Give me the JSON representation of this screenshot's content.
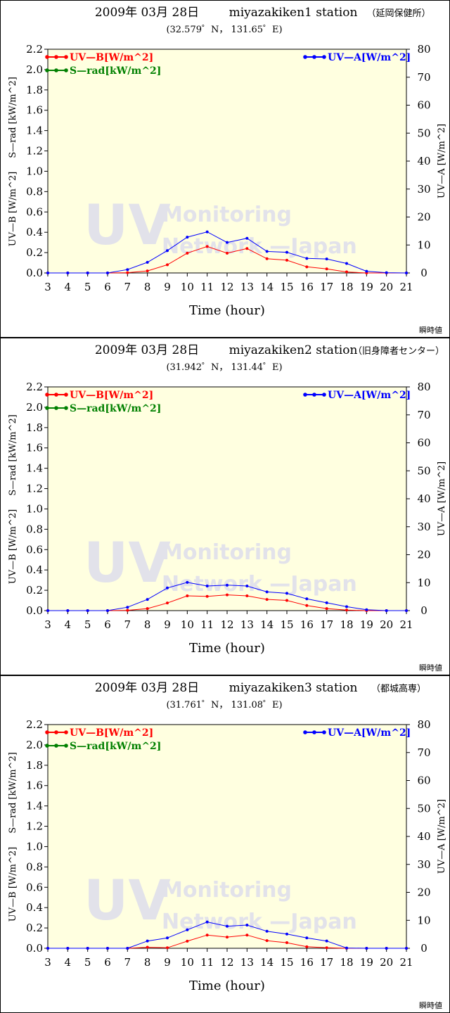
{
  "footer_label": "瞬時値",
  "watermark": {
    "big": "UV",
    "line1": "Monitoring",
    "line2": "Network —Japan"
  },
  "colors": {
    "uvb": "#ff0000",
    "srad": "#008000",
    "uva": "#0000ff",
    "plot_bg": "#ffffe0",
    "watermark": "#e2e2ea"
  },
  "chart_data": [
    {
      "type": "line",
      "date": "2009年 03月 28日",
      "station": "miyazakiken1 station",
      "station_note": "（延岡保健所）",
      "coordinates": "(32.579゜N， 131.65゜E)",
      "xlabel": "Time (hour)",
      "y_left_label_uvb": "UV—B [W/m^2]",
      "y_left_label_srad": "S—rad [kW/m^2]",
      "y_right_label": "UV—A [W/m^2]",
      "x": [
        3,
        4,
        5,
        6,
        7,
        8,
        9,
        10,
        11,
        12,
        13,
        14,
        15,
        16,
        17,
        18,
        19,
        20,
        21
      ],
      "xlim": [
        3,
        21
      ],
      "ylim_left": [
        0,
        2.2
      ],
      "ylim_right": [
        0,
        80
      ],
      "y_left_ticks": [
        "0.0",
        "0.2",
        "0.4",
        "0.6",
        "0.8",
        "1.0",
        "1.2",
        "1.4",
        "1.6",
        "1.8",
        "2.0",
        "2.2"
      ],
      "y_right_ticks": [
        "0",
        "10",
        "20",
        "30",
        "40",
        "50",
        "60",
        "70",
        "80"
      ],
      "legend": {
        "uvb": "UV—B[W/m^2]",
        "srad": "S—rad[kW/m^2]",
        "uva": "UV—A[W/m^2]"
      },
      "series": [
        {
          "name": "UV—B[W/m^2]",
          "axis": "left",
          "values": [
            0,
            0,
            0,
            0,
            0.003,
            0.02,
            0.08,
            0.195,
            0.26,
            0.195,
            0.24,
            0.14,
            0.125,
            0.06,
            0.04,
            0.01,
            0,
            0,
            0
          ]
        },
        {
          "name": "UV—A[W/m^2]",
          "axis": "right",
          "values": [
            0,
            0,
            0,
            0,
            1.2,
            3.8,
            8,
            12.8,
            14.7,
            10.9,
            12.4,
            7.7,
            7.4,
            5.2,
            5,
            3.4,
            0.6,
            0.1,
            0
          ]
        }
      ]
    },
    {
      "type": "line",
      "date": "2009年 03月 28日",
      "station": "miyazakiken2 station",
      "station_note": "（旧身障者センター）",
      "coordinates": "(31.942゜N， 131.44゜E)",
      "xlabel": "Time (hour)",
      "y_left_label_uvb": "UV—B [W/m^2]",
      "y_left_label_srad": "S—rad [kW/m^2]",
      "y_right_label": "UV—A [W/m^2]",
      "x": [
        3,
        4,
        5,
        6,
        7,
        8,
        9,
        10,
        11,
        12,
        13,
        14,
        15,
        16,
        17,
        18,
        19,
        20,
        21
      ],
      "xlim": [
        3,
        21
      ],
      "ylim_left": [
        0,
        2.2
      ],
      "ylim_right": [
        0,
        80
      ],
      "y_left_ticks": [
        "0.0",
        "0.2",
        "0.4",
        "0.6",
        "0.8",
        "1.0",
        "1.2",
        "1.4",
        "1.6",
        "1.8",
        "2.0",
        "2.2"
      ],
      "y_right_ticks": [
        "0",
        "10",
        "20",
        "30",
        "40",
        "50",
        "60",
        "70",
        "80"
      ],
      "legend": {
        "uvb": "UV—B[W/m^2]",
        "srad": "S—rad[kW/m^2]",
        "uva": "UV—A[W/m^2]"
      },
      "series": [
        {
          "name": "UV—B[W/m^2]",
          "axis": "left",
          "values": [
            0,
            0,
            0,
            0,
            0.003,
            0.02,
            0.075,
            0.145,
            0.14,
            0.155,
            0.145,
            0.11,
            0.1,
            0.05,
            0.02,
            0.005,
            0,
            0,
            0
          ]
        },
        {
          "name": "UV—A[W/m^2]",
          "axis": "right",
          "values": [
            0,
            0,
            0,
            0,
            1.2,
            4,
            8.1,
            10.1,
            8.8,
            9.1,
            8.8,
            6.7,
            6.2,
            4.2,
            2.8,
            1.4,
            0.3,
            0,
            0
          ]
        }
      ]
    },
    {
      "type": "line",
      "date": "2009年 03月 28日",
      "station": "miyazakiken3 station",
      "station_note": "（都城高専）",
      "coordinates": "(31.761゜N， 131.08゜E)",
      "xlabel": "Time (hour)",
      "y_left_label_uvb": "UV—B [W/m^2]",
      "y_left_label_srad": "S—rad [kW/m^2]",
      "y_right_label": "UV—A [W/m^2]",
      "x": [
        3,
        4,
        5,
        6,
        7,
        8,
        9,
        10,
        11,
        12,
        13,
        14,
        15,
        16,
        17,
        18,
        19,
        20,
        21
      ],
      "xlim": [
        3,
        21
      ],
      "ylim_left": [
        0,
        2.2
      ],
      "ylim_right": [
        0,
        80
      ],
      "y_left_ticks": [
        "0.0",
        "0.2",
        "0.4",
        "0.6",
        "0.8",
        "1.0",
        "1.2",
        "1.4",
        "1.6",
        "1.8",
        "2.0",
        "2.2"
      ],
      "y_right_ticks": [
        "0",
        "10",
        "20",
        "30",
        "40",
        "50",
        "60",
        "70",
        "80"
      ],
      "legend": {
        "uvb": "UV—B[W/m^2]",
        "srad": "S—rad[kW/m^2]",
        "uva": "UV—A[W/m^2]"
      },
      "series": [
        {
          "name": "UV—B[W/m^2]",
          "axis": "left",
          "values": [
            0,
            0,
            0,
            0,
            0,
            0.01,
            0.005,
            0.07,
            0.13,
            0.11,
            0.13,
            0.075,
            0.055,
            0.015,
            0.005,
            0,
            0,
            0,
            0
          ]
        },
        {
          "name": "UV—A[W/m^2]",
          "axis": "right",
          "values": [
            0,
            0,
            0,
            0,
            0,
            2.6,
            3.7,
            6.6,
            9.4,
            7.9,
            8.3,
            6.1,
            5.1,
            3.7,
            2.6,
            0.1,
            0,
            0,
            0
          ]
        }
      ]
    }
  ]
}
